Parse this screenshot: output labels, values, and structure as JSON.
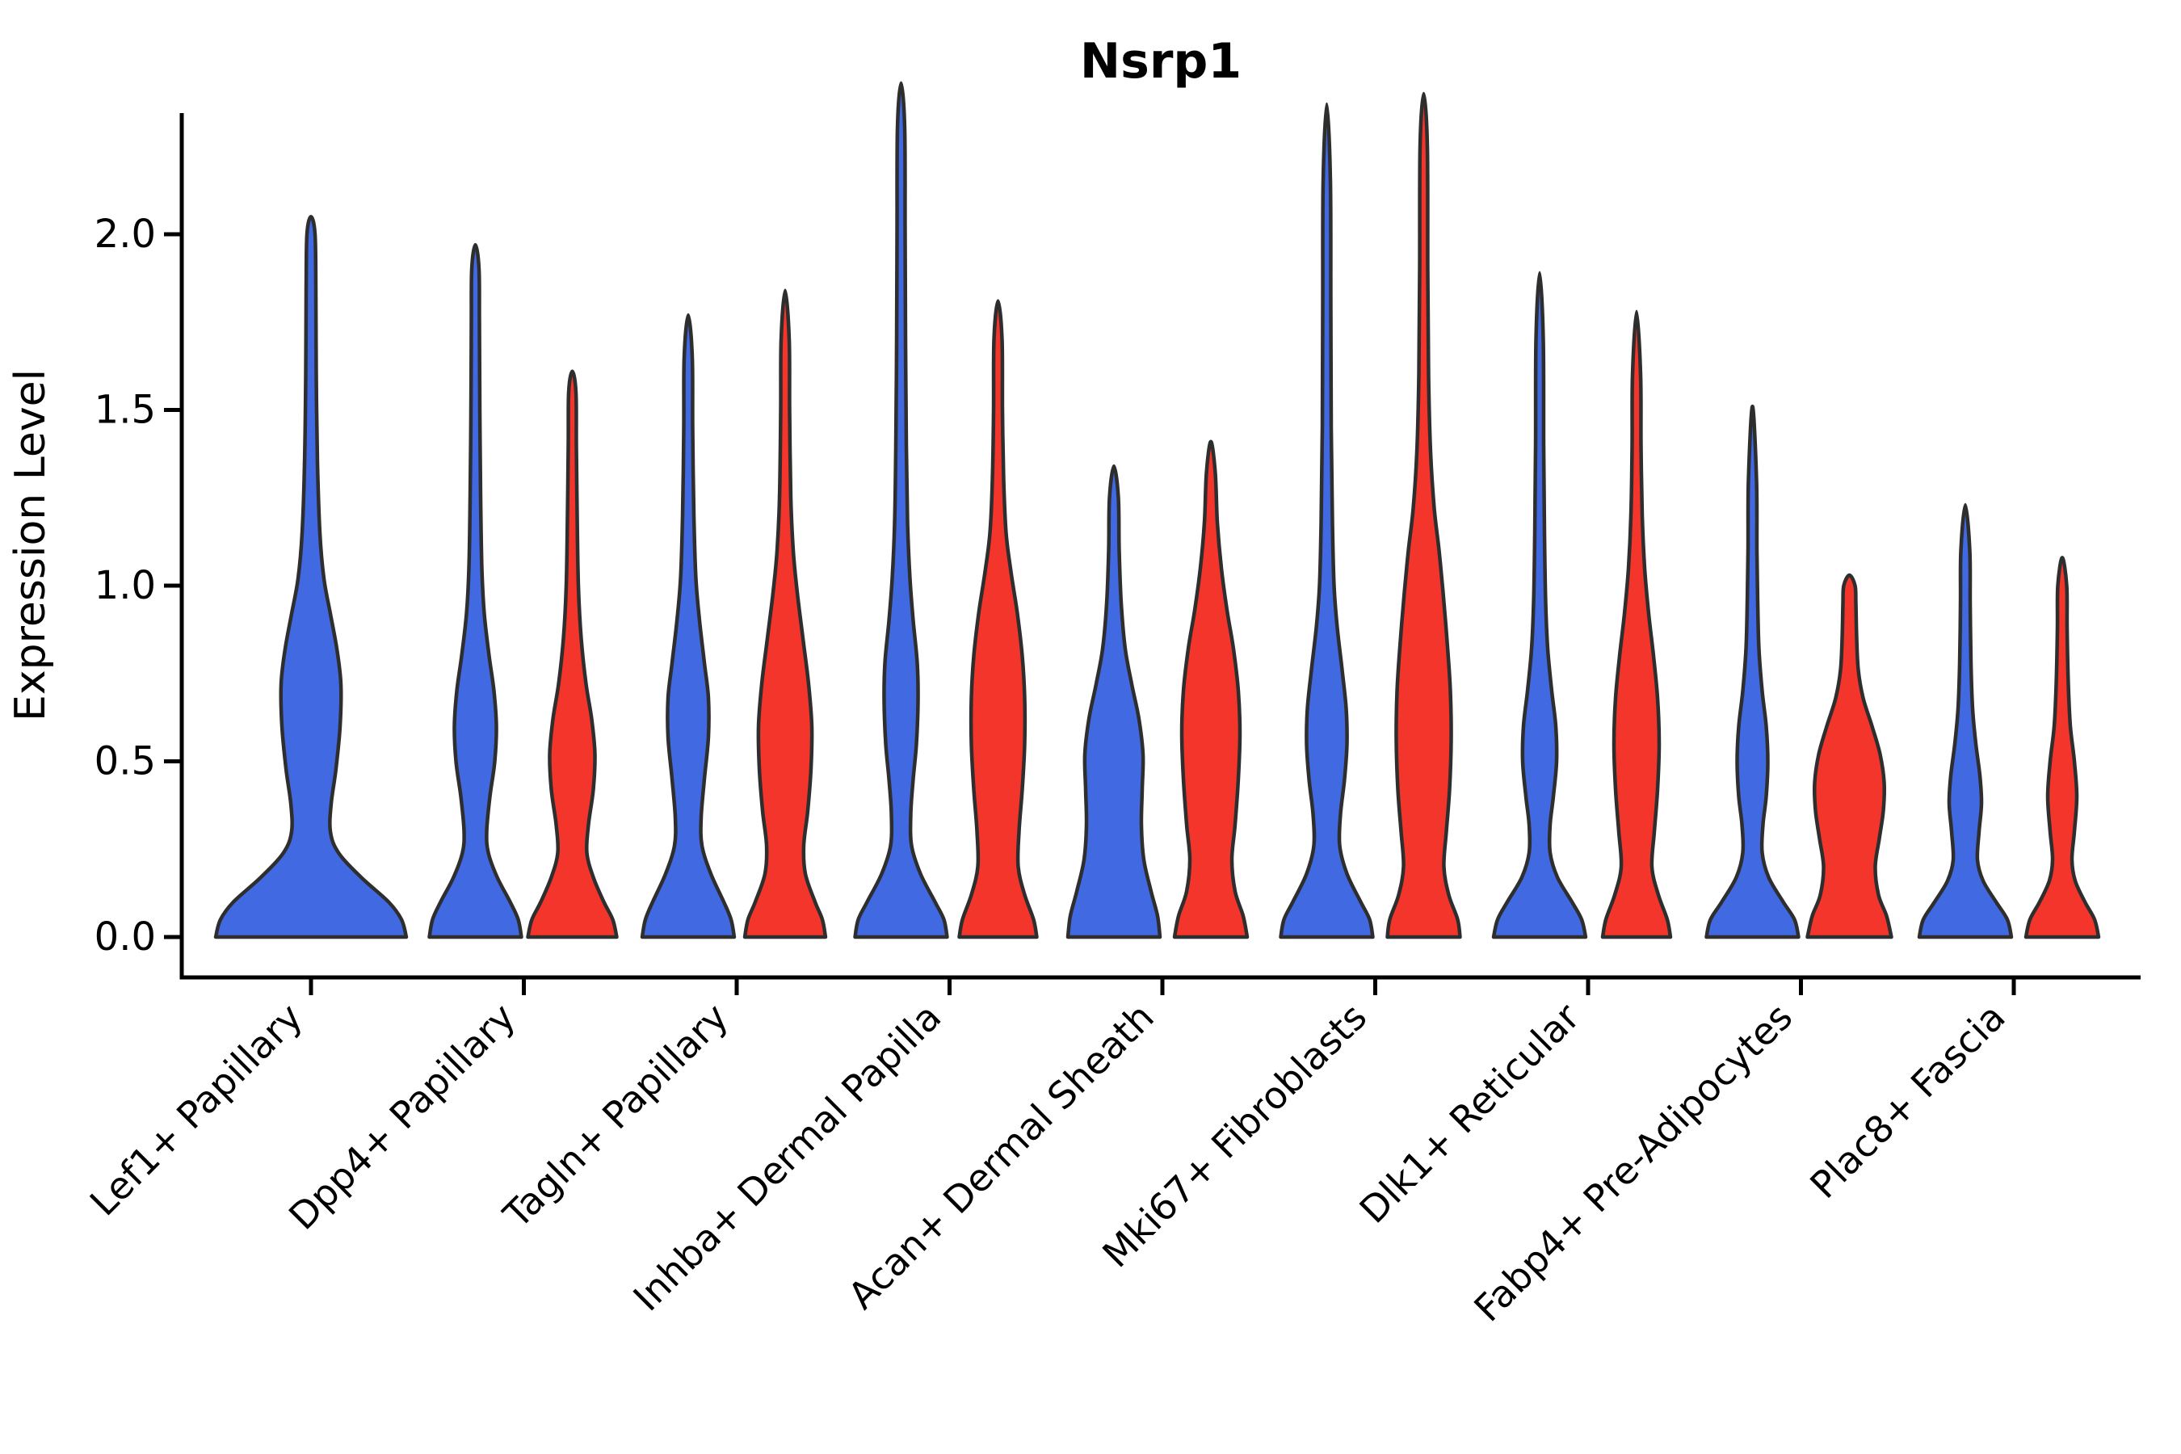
{
  "title": "Nsrp1",
  "y_axis_label": "Expression Level",
  "colors": {
    "blue": "#4169E1",
    "red": "#F3352C",
    "outline": "#2E2E2E",
    "axis": "#000000",
    "background": "#FFFFFF"
  },
  "chart_data": {
    "type": "violin",
    "title": "Nsrp1",
    "xlabel": "",
    "ylabel": "Expression Level",
    "ylim": [
      -0.115,
      2.345
    ],
    "yticks": [
      "0.0",
      "0.5",
      "1.0",
      "1.5",
      "2.0"
    ],
    "ytick_values": [
      0,
      0.5,
      1.0,
      1.5,
      2.0
    ],
    "grid": false,
    "legend": false,
    "split_groups": [
      "blue",
      "red"
    ],
    "group_colors": {
      "blue": "#4169E1",
      "red": "#F3352C"
    },
    "categories": [
      "Lef1+ Papillary",
      "Dpp4+ Papillary",
      "Tagln+ Papillary",
      "Inhba+ Dermal Papilla",
      "Acan+ Dermal Sheath",
      "Mki67+ Fibroblasts",
      "Dlk1+ Reticular",
      "Fabp4+ Pre-Adipocytes",
      "Plac8+ Fascia"
    ],
    "violins": [
      {
        "category_index": 0,
        "category": "Lef1+ Papillary",
        "group": "blue",
        "max_expression": 2.05,
        "profile": [
          [
            0,
            118
          ],
          [
            0.05,
            112
          ],
          [
            0.1,
            96
          ],
          [
            0.17,
            62
          ],
          [
            0.24,
            34
          ],
          [
            0.3,
            24
          ],
          [
            0.38,
            25
          ],
          [
            0.48,
            31
          ],
          [
            0.6,
            36
          ],
          [
            0.72,
            37
          ],
          [
            0.82,
            32
          ],
          [
            0.92,
            24
          ],
          [
            1.02,
            16
          ],
          [
            1.15,
            11
          ],
          [
            1.35,
            8
          ],
          [
            1.6,
            6.5
          ],
          [
            1.85,
            6
          ],
          [
            2.0,
            5
          ],
          [
            2.05,
            0
          ]
        ]
      },
      {
        "category_index": 1,
        "category": "Dpp4+ Papillary",
        "group": "blue",
        "max_expression": 1.97,
        "profile": [
          [
            0,
            57
          ],
          [
            0.05,
            53
          ],
          [
            0.1,
            43
          ],
          [
            0.17,
            27
          ],
          [
            0.24,
            16
          ],
          [
            0.3,
            14
          ],
          [
            0.4,
            18
          ],
          [
            0.5,
            24
          ],
          [
            0.6,
            26
          ],
          [
            0.7,
            23
          ],
          [
            0.8,
            17
          ],
          [
            0.92,
            11
          ],
          [
            1.05,
            8
          ],
          [
            1.25,
            6.5
          ],
          [
            1.5,
            5.5
          ],
          [
            1.75,
            5
          ],
          [
            1.9,
            4.5
          ],
          [
            1.97,
            0
          ]
        ]
      },
      {
        "category_index": 1,
        "category": "Dpp4+ Papillary",
        "group": "red",
        "max_expression": 1.61,
        "profile": [
          [
            0,
            55
          ],
          [
            0.05,
            50
          ],
          [
            0.1,
            39
          ],
          [
            0.17,
            26
          ],
          [
            0.24,
            18
          ],
          [
            0.32,
            20
          ],
          [
            0.42,
            26
          ],
          [
            0.52,
            28
          ],
          [
            0.62,
            24
          ],
          [
            0.72,
            17
          ],
          [
            0.85,
            11
          ],
          [
            1.0,
            7.5
          ],
          [
            1.2,
            6
          ],
          [
            1.4,
            5
          ],
          [
            1.55,
            4.5
          ],
          [
            1.61,
            0
          ]
        ]
      },
      {
        "category_index": 2,
        "category": "Tagln+ Papillary",
        "group": "blue",
        "max_expression": 1.77,
        "profile": [
          [
            0,
            57
          ],
          [
            0.05,
            53
          ],
          [
            0.1,
            44
          ],
          [
            0.18,
            28
          ],
          [
            0.26,
            17
          ],
          [
            0.34,
            16
          ],
          [
            0.45,
            20
          ],
          [
            0.57,
            25
          ],
          [
            0.68,
            25
          ],
          [
            0.78,
            20
          ],
          [
            0.9,
            14
          ],
          [
            1.02,
            9.5
          ],
          [
            1.2,
            7
          ],
          [
            1.45,
            5.5
          ],
          [
            1.65,
            5
          ],
          [
            1.77,
            0
          ]
        ]
      },
      {
        "category_index": 2,
        "category": "Tagln+ Papillary",
        "group": "red",
        "max_expression": 1.84,
        "profile": [
          [
            0,
            50
          ],
          [
            0.05,
            46
          ],
          [
            0.1,
            37
          ],
          [
            0.18,
            25
          ],
          [
            0.26,
            23
          ],
          [
            0.36,
            28
          ],
          [
            0.48,
            32
          ],
          [
            0.6,
            33
          ],
          [
            0.72,
            29
          ],
          [
            0.85,
            22
          ],
          [
            0.98,
            15
          ],
          [
            1.1,
            10
          ],
          [
            1.25,
            7
          ],
          [
            1.5,
            5.5
          ],
          [
            1.7,
            5
          ],
          [
            1.84,
            0
          ]
        ]
      },
      {
        "category_index": 3,
        "category": "Inhba+ Dermal Papilla",
        "group": "blue",
        "max_expression": 2.43,
        "profile": [
          [
            0,
            57
          ],
          [
            0.05,
            53
          ],
          [
            0.1,
            42
          ],
          [
            0.18,
            24
          ],
          [
            0.26,
            13
          ],
          [
            0.35,
            12
          ],
          [
            0.45,
            15
          ],
          [
            0.55,
            19
          ],
          [
            0.67,
            21
          ],
          [
            0.78,
            20
          ],
          [
            0.9,
            15
          ],
          [
            1.02,
            11
          ],
          [
            1.18,
            8
          ],
          [
            1.4,
            6.5
          ],
          [
            1.7,
            5.5
          ],
          [
            2.0,
            5
          ],
          [
            2.3,
            4.5
          ],
          [
            2.43,
            0
          ]
        ]
      },
      {
        "category_index": 3,
        "category": "Inhba+ Dermal Papilla",
        "group": "red",
        "max_expression": 1.81,
        "profile": [
          [
            0,
            48
          ],
          [
            0.05,
            44
          ],
          [
            0.12,
            33
          ],
          [
            0.2,
            25
          ],
          [
            0.3,
            26
          ],
          [
            0.42,
            30
          ],
          [
            0.55,
            33
          ],
          [
            0.68,
            33
          ],
          [
            0.8,
            30
          ],
          [
            0.92,
            24
          ],
          [
            1.04,
            16
          ],
          [
            1.15,
            10
          ],
          [
            1.3,
            7
          ],
          [
            1.5,
            5.5
          ],
          [
            1.7,
            5
          ],
          [
            1.81,
            0
          ]
        ]
      },
      {
        "category_index": 4,
        "category": "Acan+ Dermal Sheath",
        "group": "blue",
        "max_expression": 1.34,
        "profile": [
          [
            0,
            57
          ],
          [
            0.06,
            54
          ],
          [
            0.13,
            46
          ],
          [
            0.22,
            37
          ],
          [
            0.32,
            34
          ],
          [
            0.42,
            35
          ],
          [
            0.52,
            36
          ],
          [
            0.62,
            31
          ],
          [
            0.72,
            22
          ],
          [
            0.82,
            14
          ],
          [
            0.95,
            9
          ],
          [
            1.1,
            6.5
          ],
          [
            1.25,
            5.5
          ],
          [
            1.34,
            0
          ]
        ]
      },
      {
        "category_index": 4,
        "category": "Acan+ Dermal Sheath",
        "group": "red",
        "max_expression": 1.41,
        "profile": [
          [
            0,
            45
          ],
          [
            0.06,
            40
          ],
          [
            0.13,
            30
          ],
          [
            0.22,
            26
          ],
          [
            0.32,
            30
          ],
          [
            0.45,
            34
          ],
          [
            0.58,
            36
          ],
          [
            0.7,
            34
          ],
          [
            0.82,
            28
          ],
          [
            0.93,
            20
          ],
          [
            1.05,
            13
          ],
          [
            1.18,
            8
          ],
          [
            1.32,
            5.5
          ],
          [
            1.41,
            0
          ]
        ]
      },
      {
        "category_index": 5,
        "category": "Mki67+ Fibroblasts",
        "group": "blue",
        "max_expression": 2.37,
        "profile": [
          [
            0,
            57
          ],
          [
            0.05,
            53
          ],
          [
            0.1,
            42
          ],
          [
            0.18,
            25
          ],
          [
            0.26,
            16
          ],
          [
            0.35,
            17
          ],
          [
            0.45,
            22
          ],
          [
            0.55,
            25
          ],
          [
            0.65,
            24
          ],
          [
            0.76,
            19
          ],
          [
            0.88,
            13
          ],
          [
            1.0,
            9
          ],
          [
            1.18,
            7
          ],
          [
            1.45,
            5.5
          ],
          [
            1.8,
            5
          ],
          [
            2.15,
            4.5
          ],
          [
            2.37,
            0
          ]
        ]
      },
      {
        "category_index": 5,
        "category": "Mki67+ Fibroblasts",
        "group": "red",
        "max_expression": 2.4,
        "profile": [
          [
            0,
            45
          ],
          [
            0.05,
            42
          ],
          [
            0.12,
            31
          ],
          [
            0.2,
            25
          ],
          [
            0.3,
            28
          ],
          [
            0.42,
            32
          ],
          [
            0.56,
            34
          ],
          [
            0.7,
            33
          ],
          [
            0.84,
            29
          ],
          [
            0.98,
            24
          ],
          [
            1.1,
            19
          ],
          [
            1.22,
            13
          ],
          [
            1.38,
            8.5
          ],
          [
            1.6,
            6
          ],
          [
            1.9,
            5
          ],
          [
            2.25,
            4.5
          ],
          [
            2.4,
            0
          ]
        ]
      },
      {
        "category_index": 6,
        "category": "Dlk1+ Reticular",
        "group": "blue",
        "max_expression": 1.89,
        "profile": [
          [
            0,
            57
          ],
          [
            0.05,
            52
          ],
          [
            0.1,
            40
          ],
          [
            0.17,
            22
          ],
          [
            0.24,
            13
          ],
          [
            0.32,
            13
          ],
          [
            0.4,
            17
          ],
          [
            0.5,
            21
          ],
          [
            0.6,
            20
          ],
          [
            0.7,
            15
          ],
          [
            0.82,
            10
          ],
          [
            0.95,
            7.5
          ],
          [
            1.15,
            6
          ],
          [
            1.4,
            5
          ],
          [
            1.7,
            4.5
          ],
          [
            1.89,
            0
          ]
        ]
      },
      {
        "category_index": 6,
        "category": "Dlk1+ Reticular",
        "group": "red",
        "max_expression": 1.78,
        "profile": [
          [
            0,
            42
          ],
          [
            0.05,
            38
          ],
          [
            0.12,
            27
          ],
          [
            0.2,
            19
          ],
          [
            0.3,
            22
          ],
          [
            0.42,
            26
          ],
          [
            0.55,
            28
          ],
          [
            0.68,
            26
          ],
          [
            0.8,
            21
          ],
          [
            0.92,
            15
          ],
          [
            1.05,
            10
          ],
          [
            1.2,
            7
          ],
          [
            1.4,
            5.5
          ],
          [
            1.6,
            5
          ],
          [
            1.78,
            0
          ]
        ]
      },
      {
        "category_index": 7,
        "category": "Fabp4+ Pre-Adipocytes",
        "group": "blue",
        "max_expression": 1.51,
        "profile": [
          [
            0,
            57
          ],
          [
            0.05,
            52
          ],
          [
            0.1,
            38
          ],
          [
            0.17,
            20
          ],
          [
            0.24,
            12
          ],
          [
            0.32,
            13
          ],
          [
            0.4,
            17
          ],
          [
            0.5,
            19
          ],
          [
            0.6,
            17
          ],
          [
            0.7,
            12
          ],
          [
            0.82,
            8
          ],
          [
            0.95,
            6.5
          ],
          [
            1.1,
            5.5
          ],
          [
            1.3,
            5
          ],
          [
            1.51,
            0
          ]
        ]
      },
      {
        "category_index": 7,
        "category": "Fabp4+ Pre-Adipocytes",
        "group": "red",
        "max_expression": 1.03,
        "profile": [
          [
            0,
            52
          ],
          [
            0.06,
            46
          ],
          [
            0.12,
            36
          ],
          [
            0.2,
            32
          ],
          [
            0.28,
            37
          ],
          [
            0.36,
            42
          ],
          [
            0.44,
            43
          ],
          [
            0.52,
            38
          ],
          [
            0.6,
            28
          ],
          [
            0.68,
            17
          ],
          [
            0.76,
            11
          ],
          [
            0.85,
            9
          ],
          [
            0.95,
            8
          ],
          [
            1.0,
            7
          ],
          [
            1.03,
            0
          ]
        ]
      },
      {
        "category_index": 8,
        "category": "Plac8+ Fascia",
        "group": "blue",
        "max_expression": 1.23,
        "profile": [
          [
            0,
            57
          ],
          [
            0.05,
            52
          ],
          [
            0.1,
            38
          ],
          [
            0.16,
            22
          ],
          [
            0.22,
            15
          ],
          [
            0.3,
            17
          ],
          [
            0.38,
            20
          ],
          [
            0.46,
            18
          ],
          [
            0.55,
            13
          ],
          [
            0.65,
            9
          ],
          [
            0.78,
            7
          ],
          [
            0.95,
            6
          ],
          [
            1.1,
            5.5
          ],
          [
            1.23,
            0
          ]
        ]
      },
      {
        "category_index": 8,
        "category": "Plac8+ Fascia",
        "group": "red",
        "max_expression": 1.08,
        "profile": [
          [
            0,
            45
          ],
          [
            0.05,
            40
          ],
          [
            0.1,
            28
          ],
          [
            0.16,
            16
          ],
          [
            0.22,
            12
          ],
          [
            0.3,
            15
          ],
          [
            0.4,
            18
          ],
          [
            0.5,
            15
          ],
          [
            0.6,
            10
          ],
          [
            0.72,
            7.5
          ],
          [
            0.88,
            6
          ],
          [
            1.0,
            5.5
          ],
          [
            1.08,
            0
          ]
        ]
      }
    ]
  }
}
